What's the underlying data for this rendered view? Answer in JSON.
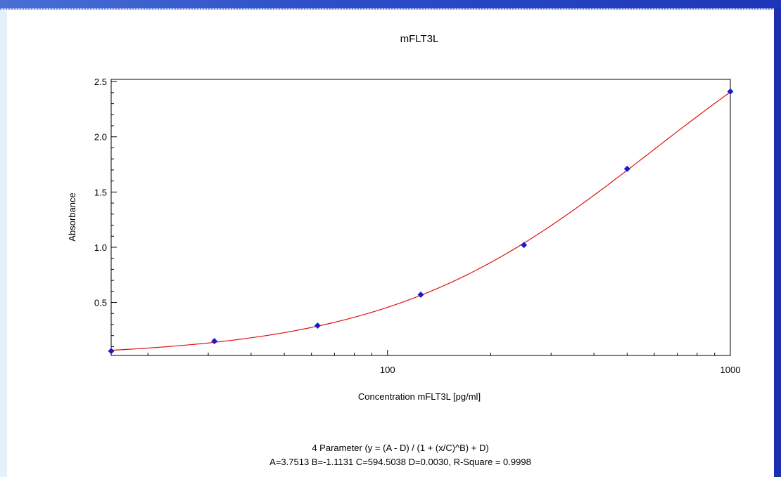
{
  "chart_data": {
    "type": "scatter",
    "title": "mFLT3L",
    "xlabel": "Concentration mFLT3L [pg/ml]",
    "ylabel": "Absorbance",
    "x_scale": "log",
    "xlim": [
      15.625,
      1000
    ],
    "ylim": [
      0.02,
      2.52
    ],
    "x_ticks": [
      {
        "value": 100,
        "label": "100"
      },
      {
        "value": 1000,
        "label": "1000"
      }
    ],
    "y_ticks": [
      {
        "value": 0.5,
        "label": "0.5"
      },
      {
        "value": 1.0,
        "label": "1.0"
      },
      {
        "value": 1.5,
        "label": "1.5"
      },
      {
        "value": 2.0,
        "label": "2.0"
      },
      {
        "value": 2.5,
        "label": "2.5"
      }
    ],
    "points": {
      "x": [
        15.625,
        31.25,
        62.5,
        125,
        250,
        500,
        1000
      ],
      "y": [
        0.06,
        0.15,
        0.29,
        0.57,
        1.02,
        1.71,
        2.41
      ]
    },
    "fit": {
      "model": "4 Parameter",
      "A": 3.7513,
      "B": -1.1131,
      "C": 594.5038,
      "D": 0.003
    },
    "colors": {
      "points": "#1a1acd",
      "fit_line": "#e01010",
      "axis": "#000000"
    },
    "grid": false,
    "legend": "none",
    "annotations": [
      "4 Parameter (y = (A - D) / (1 + (x/C)^B) + D)",
      "A=3.7513  B=-1.1131  C=594.5038  D=0.0030, R-Square = 0.9998"
    ]
  }
}
